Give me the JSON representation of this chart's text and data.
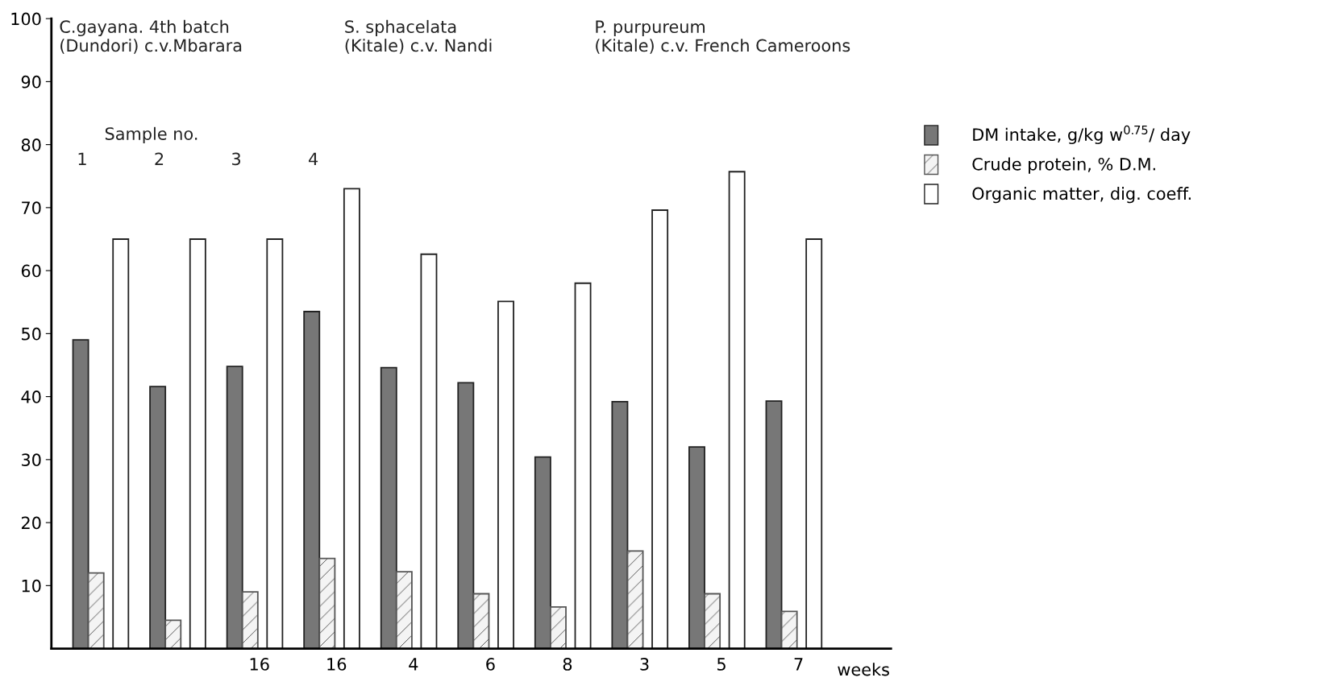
{
  "chart_data": {
    "type": "bar",
    "categories": [
      null,
      null,
      "16",
      "16",
      "4",
      "6",
      "8",
      "3",
      "5",
      "7"
    ],
    "series": [
      {
        "name": "DM intake, g/kg w$^{0.75}$/ day",
        "color": "#777777",
        "values": [
          49,
          41.6,
          44.8,
          53.5,
          44.6,
          42.2,
          30.4,
          39.2,
          32,
          39.3
        ]
      },
      {
        "name": "Crude protein, % D.M.",
        "color": "#555555",
        "values": [
          12,
          4.5,
          9,
          14.3,
          12.2,
          8.7,
          6.6,
          15.5,
          8.7,
          5.9
        ]
      },
      {
        "name": "Organic matter, dig. coeff.",
        "color": "#ffffff",
        "values": [
          65,
          65,
          65,
          73,
          62.6,
          55.1,
          58,
          69.6,
          75.7,
          65
        ]
      }
    ],
    "ylim": [
      0,
      100
    ],
    "yticks": [
      10,
      20,
      30,
      40,
      50,
      60,
      70,
      80,
      90,
      100
    ],
    "grid": false,
    "legend": "right",
    "annotations": [
      "C.gayana. 4th batch\n(Dundori) c.v.Mbarara",
      "S. sphacelata\n(Kitale) c.v. Nandi",
      "P. purpureum\n(Kitale) c.v. French Cameroons",
      "Sample no.",
      "1",
      "2",
      "3",
      "4",
      "weeks"
    ]
  }
}
